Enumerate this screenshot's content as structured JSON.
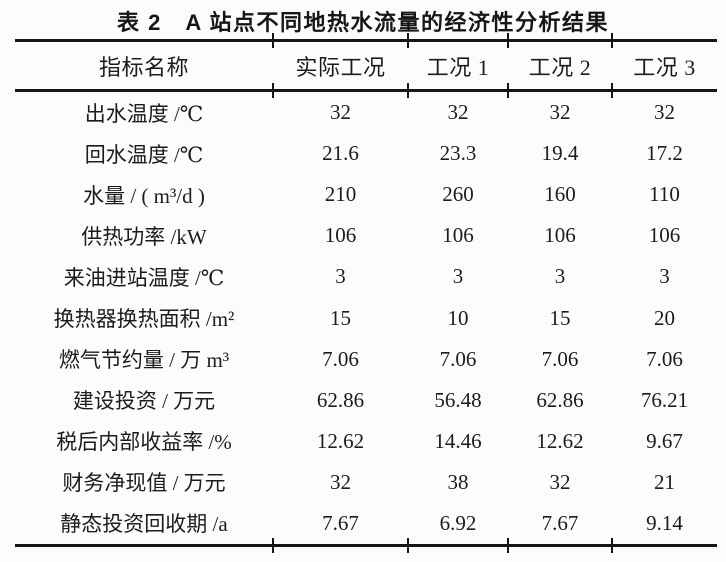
{
  "title": "表 2　A 站点不同地热水流量的经济性分析结果",
  "table": {
    "columns": [
      "指标名称",
      "实际工况",
      "工况 1",
      "工况 2",
      "工况 3"
    ],
    "rows": [
      {
        "label": "出水温度 /℃",
        "values": [
          "32",
          "32",
          "32",
          "32"
        ]
      },
      {
        "label": "回水温度 /℃",
        "values": [
          "21.6",
          "23.3",
          "19.4",
          "17.2"
        ]
      },
      {
        "label": "水量 / ( m³/d )",
        "values": [
          "210",
          "260",
          "160",
          "110"
        ]
      },
      {
        "label": "供热功率 /kW",
        "values": [
          "106",
          "106",
          "106",
          "106"
        ]
      },
      {
        "label": "来油进站温度 /℃",
        "values": [
          "3",
          "3",
          "3",
          "3"
        ]
      },
      {
        "label": "换热器换热面积 /m²",
        "values": [
          "15",
          "10",
          "15",
          "20"
        ]
      },
      {
        "label": "燃气节约量 / 万 m³",
        "values": [
          "7.06",
          "7.06",
          "7.06",
          "7.06"
        ]
      },
      {
        "label": "建设投资 / 万元",
        "values": [
          "62.86",
          "56.48",
          "62.86",
          "76.21"
        ]
      },
      {
        "label": "税后内部收益率 /%",
        "values": [
          "12.62",
          "14.46",
          "12.62",
          "9.67"
        ]
      },
      {
        "label": "财务净现值 / 万元",
        "values": [
          "32",
          "38",
          "32",
          "21"
        ]
      },
      {
        "label": "静态投资回收期 /a",
        "values": [
          "7.67",
          "6.92",
          "7.67",
          "9.14"
        ]
      }
    ]
  }
}
